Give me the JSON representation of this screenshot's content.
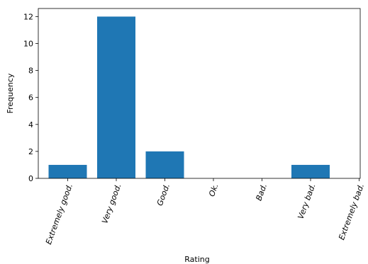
{
  "chart_data": {
    "type": "bar",
    "categories": [
      "Extremely good.",
      "Very good.",
      "Good.",
      "Ok.",
      "Bad.",
      "Very bad.",
      "Extremely bad."
    ],
    "values": [
      1,
      12,
      2,
      0,
      0,
      1,
      0
    ],
    "xlabel": "Rating",
    "ylabel": "Frequency",
    "ylim": [
      0,
      12.6
    ],
    "yticks": [
      0,
      2,
      4,
      6,
      8,
      10,
      12
    ],
    "grid": false,
    "bar_color": "#1f77b4",
    "tick_label_rotation_deg": 70
  }
}
